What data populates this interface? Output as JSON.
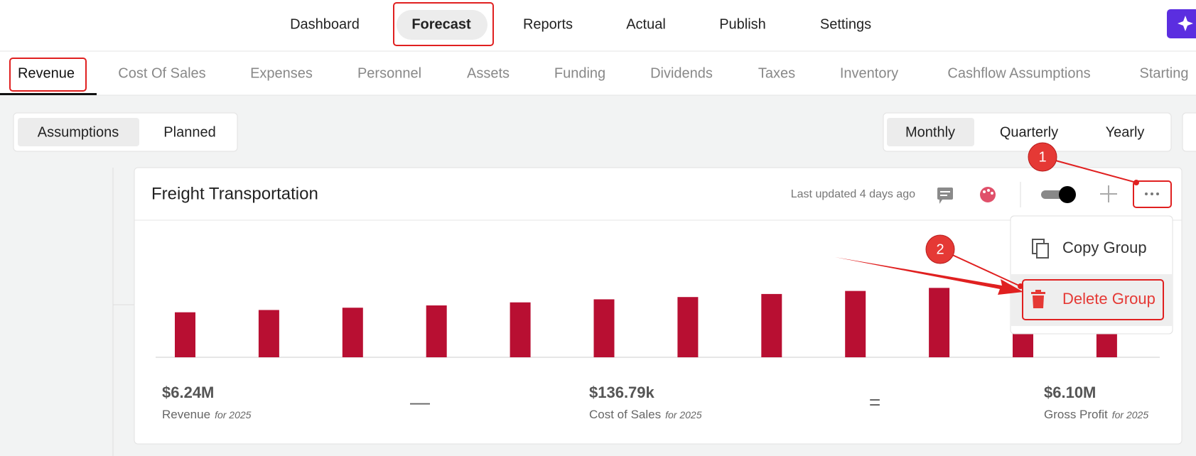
{
  "nav": {
    "items": [
      "Dashboard",
      "Forecast",
      "Reports",
      "Actual",
      "Publish",
      "Settings"
    ],
    "active": "Forecast"
  },
  "tabs": {
    "items": [
      "Revenue",
      "Cost Of Sales",
      "Expenses",
      "Personnel",
      "Assets",
      "Funding",
      "Dividends",
      "Taxes",
      "Inventory",
      "Cashflow Assumptions",
      "Starting"
    ],
    "active": "Revenue"
  },
  "view_toggle": {
    "items": [
      "Assumptions",
      "Planned"
    ],
    "active": "Assumptions"
  },
  "period_toggle": {
    "items": [
      "Monthly",
      "Quarterly",
      "Yearly"
    ],
    "active": "Monthly"
  },
  "card": {
    "title": "Freight Transportation",
    "updated": "Last updated 4 days ago",
    "chart": {
      "type": "bar",
      "color": "#b80f32",
      "values": [
        59,
        62,
        65,
        68,
        72,
        76,
        79,
        83,
        87,
        91,
        95,
        99
      ]
    },
    "stats": [
      {
        "value": "$6.24M",
        "label": "Revenue",
        "period": "for 2025"
      },
      {
        "value": "$136.79k",
        "label": "Cost of Sales",
        "period": "for 2025"
      },
      {
        "value": "$6.10M",
        "label": "Gross Profit",
        "period": "for 2025"
      }
    ],
    "operators": [
      "—",
      "="
    ]
  },
  "menu": {
    "items": [
      "Copy Group",
      "Delete Group"
    ]
  },
  "annotations": [
    "1",
    "2"
  ]
}
